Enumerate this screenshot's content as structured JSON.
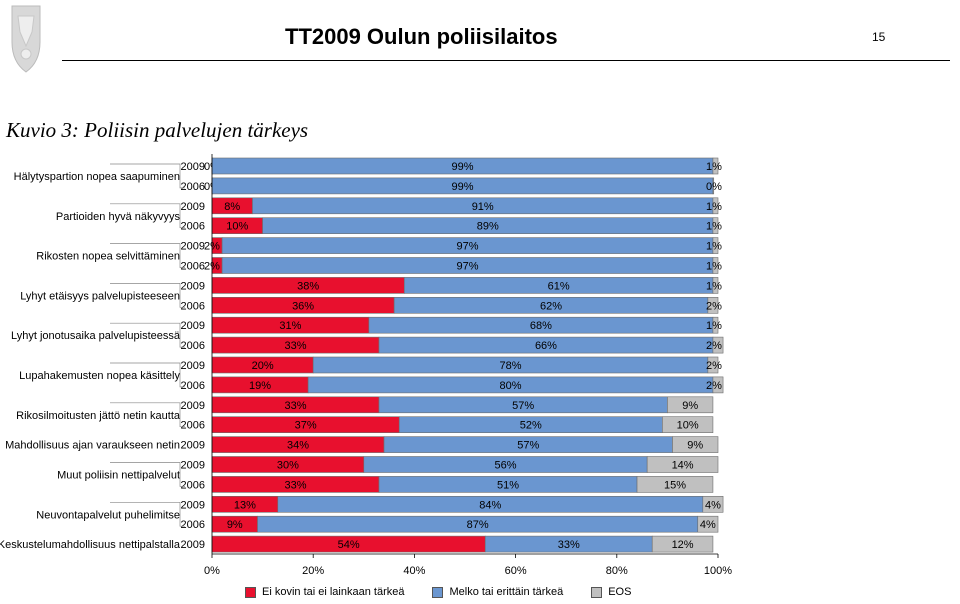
{
  "header": {
    "title": "TT2009 Oulun poliisilaitos",
    "page_number": "15"
  },
  "figure_title": "Kuvio 3: Poliisin palvelujen tärkeys",
  "colors": {
    "not_important": "#e8102e",
    "important": "#6a96d0",
    "eos": "#c0c0c0"
  },
  "chart_data": {
    "type": "bar",
    "orientation": "horizontal-stacked-100",
    "series": [
      {
        "name": "Ei kovin tai ei lainkaan tärkeä",
        "color": "#e8102e"
      },
      {
        "name": "Melko tai erittäin tärkeä",
        "color": "#6a96d0"
      },
      {
        "name": "EOS",
        "color": "#c0c0c0"
      }
    ],
    "groups": [
      {
        "label": "Hälytyspartion nopea saapuminen",
        "rows": [
          {
            "year": "2009",
            "values": [
              0,
              99,
              1
            ]
          },
          {
            "year": "2006",
            "values": [
              0,
              99,
              0
            ]
          }
        ]
      },
      {
        "label": "Partioiden hyvä näkyvyys",
        "rows": [
          {
            "year": "2009",
            "values": [
              8,
              91,
              1
            ]
          },
          {
            "year": "2006",
            "values": [
              10,
              89,
              1
            ]
          }
        ]
      },
      {
        "label": "Rikosten nopea selvittäminen",
        "rows": [
          {
            "year": "2009",
            "values": [
              2,
              97,
              1
            ]
          },
          {
            "year": "2006",
            "values": [
              2,
              97,
              1
            ]
          }
        ]
      },
      {
        "label": "Lyhyt etäisyys palvelupisteeseen",
        "rows": [
          {
            "year": "2009",
            "values": [
              38,
              61,
              1
            ]
          },
          {
            "year": "2006",
            "values": [
              36,
              62,
              2
            ]
          }
        ]
      },
      {
        "label": "Lyhyt jonotusaika palvelupisteessä",
        "rows": [
          {
            "year": "2009",
            "values": [
              31,
              68,
              1
            ]
          },
          {
            "year": "2006",
            "values": [
              33,
              66,
              2
            ]
          }
        ]
      },
      {
        "label": "Lupahakemusten nopea käsittely",
        "rows": [
          {
            "year": "2009",
            "values": [
              20,
              78,
              2
            ]
          },
          {
            "year": "2006",
            "values": [
              19,
              80,
              2
            ]
          }
        ]
      },
      {
        "label": "Rikosilmoitusten jättö netin kautta",
        "rows": [
          {
            "year": "2009",
            "values": [
              33,
              57,
              9
            ]
          },
          {
            "year": "2006",
            "values": [
              37,
              52,
              10
            ]
          }
        ]
      },
      {
        "label": "Mahdollisuus ajan varaukseen netin",
        "rows": [
          {
            "year": "2009",
            "values": [
              34,
              57,
              9
            ]
          }
        ]
      },
      {
        "label": "Muut poliisin nettipalvelut",
        "rows": [
          {
            "year": "2009",
            "values": [
              30,
              56,
              14
            ]
          },
          {
            "year": "2006",
            "values": [
              33,
              51,
              15
            ]
          }
        ]
      },
      {
        "label": "Neuvontapalvelut puhelimitse",
        "rows": [
          {
            "year": "2009",
            "values": [
              13,
              84,
              4
            ]
          },
          {
            "year": "2006",
            "values": [
              9,
              87,
              4
            ]
          }
        ]
      },
      {
        "label": "Keskustelumahdollisuus nettipalstalla",
        "rows": [
          {
            "year": "2009",
            "values": [
              54,
              33,
              12
            ]
          }
        ]
      }
    ],
    "x_ticks": [
      "0%",
      "20%",
      "40%",
      "60%",
      "80%",
      "100%"
    ],
    "xlim": [
      0,
      100
    ],
    "legend_position": "bottom",
    "value_format": "percent"
  }
}
